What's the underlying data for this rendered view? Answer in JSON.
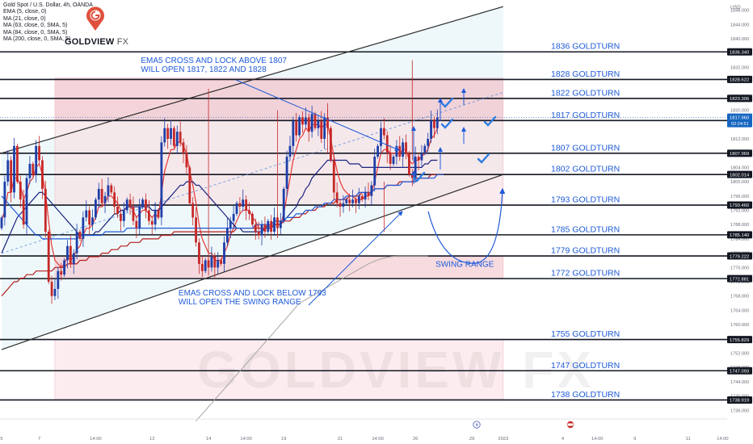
{
  "header": {
    "title": "Gold Spot / U.S. Dollar, 4h, OANDA",
    "indicators": [
      "EMA (5, close, 0)",
      "MA (21, close, 0)",
      "MA (63, close, 0, SMA, 5)",
      "MA (84, close, 0, SMA, 5)",
      "MA (200, close, 0, SMA, 5)"
    ]
  },
  "logo": {
    "brand": "GOLDVIEW",
    "suffix": "FX"
  },
  "watermark": "GOLDVIEW FX",
  "chart_data": {
    "type": "candlestick",
    "instrument": "Gold Spot / U.S. Dollar, 4h, OANDA",
    "y_axis_unit": "USD",
    "ylim": [
      1734.5,
      1849.5
    ],
    "y_ticks": [
      1736,
      1740,
      1744,
      1748,
      1752,
      1756,
      1760,
      1764,
      1768,
      1772,
      1776,
      1780,
      1784,
      1788,
      1792,
      1796,
      1800,
      1804,
      1808,
      1812,
      1816,
      1820,
      1824,
      1828,
      1832,
      1836,
      1840,
      1844,
      1848
    ],
    "x_ticks": [
      {
        "i": 0,
        "label": "5"
      },
      {
        "i": 12,
        "label": "7"
      },
      {
        "i": 30,
        "label": "14:00"
      },
      {
        "i": 48,
        "label": "12"
      },
      {
        "i": 66,
        "label": "14"
      },
      {
        "i": 78,
        "label": "14:00"
      },
      {
        "i": 90,
        "label": "19"
      },
      {
        "i": 108,
        "label": "21"
      },
      {
        "i": 120,
        "label": "14:00"
      },
      {
        "i": 132,
        "label": "26"
      },
      {
        "i": 150,
        "label": "29"
      },
      {
        "i": 160,
        "label": "2023"
      },
      {
        "i": 179,
        "label": "4"
      },
      {
        "i": 190,
        "label": "14:00"
      },
      {
        "i": 202,
        "label": "9"
      },
      {
        "i": 219,
        "label": "11"
      },
      {
        "i": 230,
        "label": "14:00"
      }
    ],
    "closes": [
      1790,
      1800,
      1806,
      1797,
      1810,
      1800,
      1795,
      1788,
      1801,
      1805,
      1802,
      1810,
      1806,
      1798,
      1786,
      1772,
      1768,
      1770,
      1775,
      1774,
      1778,
      1782,
      1777,
      1780,
      1786,
      1784,
      1790,
      1792,
      1788,
      1790,
      1795,
      1798,
      1794,
      1796,
      1799,
      1797,
      1793,
      1791,
      1789,
      1792,
      1795,
      1793,
      1789,
      1787,
      1793,
      1795,
      1792,
      1789,
      1788,
      1792,
      1790,
      1811,
      1815,
      1812,
      1815,
      1810,
      1814,
      1811,
      1808,
      1804,
      1794,
      1790,
      1783,
      1777,
      1775,
      1778,
      1776,
      1779,
      1776,
      1778,
      1777,
      1783,
      1787,
      1789,
      1791,
      1794,
      1793,
      1795,
      1792,
      1791,
      1788,
      1786,
      1785,
      1788,
      1786,
      1789,
      1786,
      1790,
      1787,
      1789,
      1798,
      1807,
      1810,
      1817,
      1813,
      1818,
      1816,
      1818,
      1814,
      1819,
      1815,
      1817,
      1812,
      1818,
      1815,
      1806,
      1797,
      1794,
      1793,
      1794,
      1795,
      1794,
      1795,
      1794,
      1796,
      1795,
      1797,
      1796,
      1799,
      1807,
      1810,
      1815,
      1813,
      1808,
      1805,
      1807,
      1810,
      1807,
      1811,
      1808,
      1802,
      1801,
      1807,
      1806,
      1808,
      1810,
      1812,
      1817.1,
      1815,
      1817.96
    ],
    "ma_series": [
      {
        "indicator": "EMA (5, close, 0)",
        "color": "#e53935",
        "values": [
          1789,
          1792,
          1797,
          1797,
          1801,
          1801,
          1799,
          1795,
          1797,
          1800,
          1801,
          1804,
          1805,
          1802,
          1797,
          1789,
          1782,
          1778,
          1777,
          1776,
          1777,
          1779,
          1778,
          1779,
          1781,
          1782,
          1785,
          1787,
          1787,
          1788,
          1790,
          1793,
          1793,
          1794,
          1796,
          1796,
          1795,
          1794,
          1792,
          1792,
          1793,
          1793,
          1792,
          1790,
          1791,
          1792,
          1792,
          1791,
          1790,
          1791,
          1790,
          1797,
          1803,
          1806,
          1809,
          1809,
          1811,
          1811,
          1810,
          1808,
          1803,
          1799,
          1794,
          1788,
          1784,
          1782,
          1780,
          1780,
          1778,
          1778,
          1778,
          1780,
          1782,
          1785,
          1787,
          1789,
          1791,
          1792,
          1792,
          1792,
          1790,
          1789,
          1787,
          1787,
          1787,
          1788,
          1787,
          1788,
          1788,
          1788,
          1791,
          1796,
          1801,
          1806,
          1809,
          1812,
          1813,
          1815,
          1814,
          1816,
          1816,
          1816,
          1815,
          1816,
          1816,
          1812,
          1807,
          1803,
          1800,
          1798,
          1797,
          1796,
          1796,
          1795,
          1795,
          1795,
          1796,
          1796,
          1797,
          1800,
          1804,
          1808,
          1809,
          1809,
          1808,
          1808,
          1808,
          1808,
          1809,
          1809,
          1806,
          1805,
          1806,
          1806,
          1807,
          1808,
          1809,
          1812,
          1813,
          1815
        ]
      },
      {
        "indicator": "MA (21, close, 0)",
        "color": "#1a237e",
        "values": [
          1780,
          1782,
          1784,
          1786,
          1788,
          1790,
          1791,
          1792,
          1793,
          1794,
          1795,
          1796,
          1797,
          1797,
          1796,
          1795,
          1794,
          1793,
          1792,
          1791,
          1790,
          1789,
          1788,
          1787,
          1786,
          1785,
          1785,
          1785,
          1785,
          1785,
          1786,
          1786,
          1787,
          1788,
          1789,
          1790,
          1791,
          1791,
          1792,
          1792,
          1793,
          1793,
          1793,
          1793,
          1793,
          1793,
          1793,
          1793,
          1792,
          1792,
          1792,
          1793,
          1794,
          1795,
          1796,
          1797,
          1798,
          1799,
          1799,
          1800,
          1800,
          1800,
          1799,
          1799,
          1798,
          1797,
          1796,
          1795,
          1794,
          1793,
          1792,
          1791,
          1790,
          1789,
          1788,
          1787,
          1787,
          1786,
          1786,
          1786,
          1786,
          1786,
          1786,
          1786,
          1787,
          1787,
          1787,
          1788,
          1788,
          1788,
          1789,
          1790,
          1791,
          1792,
          1793,
          1795,
          1796,
          1798,
          1799,
          1801,
          1802,
          1803,
          1804,
          1805,
          1806,
          1806,
          1806,
          1806,
          1806,
          1806,
          1806,
          1805,
          1805,
          1805,
          1805,
          1804,
          1804,
          1804,
          1804,
          1804,
          1804,
          1804,
          1804,
          1804,
          1804,
          1804,
          1804,
          1804,
          1804,
          1804,
          1804,
          1804,
          1804,
          1804,
          1804,
          1805,
          1805,
          1806,
          1806,
          1806
        ]
      },
      {
        "indicator": "MA (63, close, 0, SMA, 5)",
        "color": "#b71c1c",
        "values": [
          1768,
          1769,
          1770,
          1771,
          1772,
          1772,
          1773,
          1773,
          1774,
          1774,
          1774,
          1775,
          1775,
          1775,
          1775,
          1775,
          1775,
          1776,
          1776,
          1776,
          1776,
          1777,
          1777,
          1777,
          1777,
          1778,
          1778,
          1778,
          1779,
          1779,
          1779,
          1779,
          1780,
          1780,
          1780,
          1781,
          1781,
          1781,
          1782,
          1782,
          1782,
          1783,
          1783,
          1783,
          1783,
          1784,
          1784,
          1784,
          1784,
          1784,
          1784,
          1785,
          1785,
          1785,
          1785,
          1786,
          1786,
          1786,
          1786,
          1786,
          1786,
          1786,
          1786,
          1786,
          1786,
          1786,
          1786,
          1786,
          1786,
          1786,
          1786,
          1786,
          1786,
          1786,
          1786,
          1787,
          1787,
          1787,
          1787,
          1787,
          1787,
          1787,
          1787,
          1787,
          1787,
          1788,
          1788,
          1788,
          1788,
          1788,
          1789,
          1789,
          1789,
          1790,
          1790,
          1790,
          1791,
          1791,
          1792,
          1792,
          1792,
          1793,
          1793,
          1793,
          1794,
          1794,
          1794,
          1795,
          1795,
          1795,
          1795,
          1796,
          1796,
          1796,
          1796,
          1797,
          1797,
          1797,
          1797,
          1798,
          1798,
          1798,
          1798,
          1799,
          1799,
          1799,
          1799,
          1800,
          1800,
          1800,
          1800,
          1800,
          1801,
          1801,
          1801,
          1801,
          1801,
          1802,
          1802,
          1802,
          1802
        ]
      },
      {
        "indicator": "MA (84, close, 0, SMA, 5)",
        "color": "#1e5ad8",
        "values": [
          1796,
          1795,
          1794,
          1793,
          1792,
          1791,
          1790,
          1789,
          1788,
          1787,
          1786,
          1785,
          1785,
          1784,
          1784,
          1784,
          1784,
          1784,
          1784,
          1784,
          1784,
          1784,
          1784,
          1784,
          1784,
          1785,
          1785,
          1785,
          1785,
          1785,
          1785,
          1785,
          1785,
          1786,
          1786,
          1786,
          1786,
          1786,
          1786,
          1786,
          1787,
          1787,
          1787,
          1787,
          1787,
          1787,
          1787,
          1787,
          1787,
          1787,
          1787,
          1787,
          1787,
          1787,
          1787,
          1787,
          1787,
          1787,
          1787,
          1787,
          1787,
          1787,
          1787,
          1787,
          1787,
          1787,
          1787,
          1787,
          1787,
          1787,
          1787,
          1787,
          1787,
          1787,
          1787,
          1787,
          1787,
          1787,
          1787,
          1787,
          1787,
          1788,
          1788,
          1788,
          1788,
          1788,
          1788,
          1789,
          1789,
          1789,
          1789,
          1790,
          1790,
          1790,
          1791,
          1791,
          1791,
          1792,
          1792,
          1792,
          1793,
          1793,
          1793,
          1794,
          1794,
          1794,
          1795,
          1795,
          1795,
          1795,
          1796,
          1796,
          1796,
          1796,
          1797,
          1797,
          1797,
          1797,
          1797,
          1798,
          1798,
          1798,
          1798,
          1799,
          1799,
          1799,
          1799,
          1799,
          1800,
          1800,
          1800,
          1800,
          1800,
          1801,
          1801,
          1801,
          1801,
          1801,
          1801,
          1802,
          1802,
          1802
        ]
      },
      {
        "indicator": "MA (200, close, 0, SMA, 5)",
        "color": "#9e9e9e",
        "extends_to_i": 148,
        "values": [
          null,
          null,
          null,
          null,
          null,
          null,
          null,
          null,
          null,
          null,
          null,
          null,
          null,
          null,
          null,
          null,
          null,
          null,
          null,
          null,
          null,
          null,
          null,
          null,
          null,
          null,
          null,
          null,
          null,
          null,
          null,
          null,
          null,
          null,
          null,
          null,
          null,
          null,
          null,
          null,
          null,
          null,
          null,
          null,
          null,
          null,
          null,
          null,
          null,
          null,
          null,
          null,
          null,
          null,
          null,
          null,
          null,
          null,
          null,
          null,
          null,
          null,
          1733,
          1734,
          1735,
          1736,
          1737,
          1738,
          1739,
          1740,
          1741,
          1742,
          1743,
          1744,
          1745,
          1746,
          1747,
          1748,
          1749,
          1750,
          1751,
          1752,
          1753,
          1754,
          1755,
          1756,
          1757,
          1758,
          1759,
          1760,
          1761,
          1762,
          1763,
          1764,
          1765,
          1766,
          1766.5,
          1767,
          1767.5,
          1768,
          1768.5,
          1769,
          1769.5,
          1770,
          1770.5,
          1771,
          1771.5,
          1772,
          1772.5,
          1773,
          1773.5,
          1774,
          1774.5,
          1775,
          1775.5,
          1776,
          1776.5,
          1777,
          1777.4,
          1777.8,
          1778.1,
          1778.4,
          1778.6,
          1778.8,
          1779,
          1779.1,
          1779.2,
          1779.2,
          1779.2,
          1779.2,
          1779.2,
          1779.2,
          1779.2,
          1779.2,
          1779.2,
          1779.2,
          1779.2
        ]
      }
    ],
    "levels": [
      {
        "label": "1836 GOLDTURN",
        "price": 1836.34,
        "badge": "1836.340"
      },
      {
        "label": "1828 GOLDTURN",
        "price": 1828.622,
        "badge": "1828.622"
      },
      {
        "label": "1822 GOLDTURN",
        "price": 1823.306,
        "badge": "1823.306"
      },
      {
        "label": "1817 GOLDTURN",
        "price": 1817.129,
        "badge": "1817.129"
      },
      {
        "label": "1807 GOLDTURN",
        "price": 1807.969,
        "badge": "1807.969"
      },
      {
        "label": "1802 GOLDTURN",
        "price": 1802.014,
        "badge": "1802.014"
      },
      {
        "label": "1793 GOLDTURN",
        "price": 1793.46,
        "badge": "1793.460"
      },
      {
        "label": "1785 GOLDTURN",
        "price": 1785.14,
        "badge": "1785.140"
      },
      {
        "label": "1779 GOLDTURN",
        "price": 1779.222,
        "badge": "1779.222"
      },
      {
        "label": "1772 GOLDTURN",
        "price": 1772.881,
        "badge": "1772.881"
      },
      {
        "label": "1755 GOLDTURN",
        "price": 1755.829,
        "badge": "1755.829"
      },
      {
        "label": "1747 GOLDTURN",
        "price": 1747.093,
        "badge": "1747.093"
      },
      {
        "label": "1738 GOLDTURN",
        "price": 1738.919,
        "badge": "1738.919"
      }
    ],
    "price_badge": {
      "value": "1817.960",
      "countdown": "02:24:51",
      "color": "#1565c0"
    },
    "channel": {
      "upper": [
        [
          0,
          1808
        ],
        [
          160,
          1849
        ]
      ],
      "lower": [
        [
          0,
          1753
        ],
        [
          160,
          1802
        ]
      ],
      "mid": [
        [
          0,
          1780
        ],
        [
          160,
          1825
        ]
      ]
    },
    "zones": [
      {
        "name": "red",
        "from_i": 17,
        "to_i": 160,
        "low": 1817,
        "high": 1829,
        "color": "#f2c6cd"
      },
      {
        "name": "pink",
        "from_i": 17,
        "to_i": 160,
        "low": 1793.5,
        "high": 1817,
        "color": "#f8e3e7"
      },
      {
        "name": "swing-range",
        "from_i": 17,
        "to_i": 160,
        "low": 1772.9,
        "high": 1779,
        "color": "#f5cfd5"
      },
      {
        "name": "lower-pink",
        "from_i": 17,
        "to_i": 160,
        "low": 1739,
        "high": 1755.8,
        "color": "#fbe6ea"
      }
    ],
    "annotations": [
      {
        "text": "EMA5 CROSS AND LOCK ABOVE 1807",
        "i": 47,
        "price": 1833.2
      },
      {
        "text": "WILL OPEN 1817, 1822 AND 1828",
        "i": 47,
        "price": 1830.7
      },
      {
        "text": "EMA5 CROSS AND LOCK BELOW 1793",
        "i": 59,
        "price": 1768.2
      },
      {
        "text": "WILL OPEN THE SWING RANGE",
        "i": 59,
        "price": 1765.7
      },
      {
        "text": "SWING RANGE",
        "i": 141,
        "price": 1776.2
      }
    ],
    "colors": {
      "up": "#1e3ea8",
      "down": "#c62828",
      "level_text": "#1e5ad8",
      "annotation": "#1e5ad8"
    },
    "y_label": "USD"
  }
}
